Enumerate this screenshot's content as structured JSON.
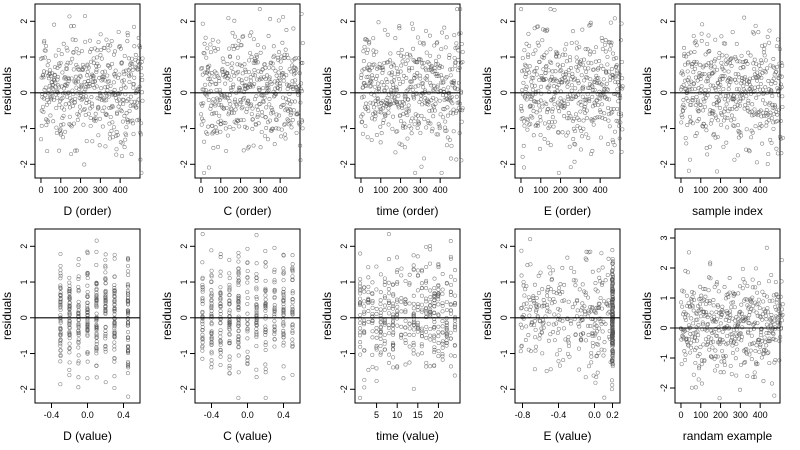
{
  "chart_data": [
    {
      "type": "scatter",
      "title": "",
      "xlabel": "D (order)",
      "ylabel": "residuals",
      "xlim": [
        -15,
        485
      ],
      "ylim": [
        -2.3,
        2.4
      ],
      "xticks": [
        0,
        100,
        200,
        300,
        400
      ],
      "xtick_labels": [
        "0",
        "100",
        "200",
        "300",
        "400"
      ],
      "yticks": [
        -2,
        -1,
        0,
        1,
        2
      ],
      "ytick_labels": [
        "-2",
        "-1",
        "0",
        "1",
        "2"
      ],
      "hline": 0,
      "n_points": 470
    },
    {
      "type": "scatter",
      "title": "",
      "xlabel": "C (order)",
      "ylabel": "residuals",
      "xlim": [
        -15,
        485
      ],
      "ylim": [
        -2.3,
        2.4
      ],
      "xticks": [
        0,
        100,
        200,
        300,
        400
      ],
      "xtick_labels": [
        "0",
        "100",
        "200",
        "300",
        "400"
      ],
      "yticks": [
        -2,
        -1,
        0,
        1,
        2
      ],
      "ytick_labels": [
        "-2",
        "-1",
        "0",
        "1",
        "2"
      ],
      "hline": 0,
      "n_points": 470
    },
    {
      "type": "scatter",
      "title": "",
      "xlabel": "time (order)",
      "ylabel": "residuals",
      "xlim": [
        -15,
        485
      ],
      "ylim": [
        -2.3,
        2.4
      ],
      "xticks": [
        0,
        100,
        200,
        300,
        400
      ],
      "xtick_labels": [
        "0",
        "100",
        "200",
        "300",
        "400"
      ],
      "yticks": [
        -2,
        -1,
        0,
        1,
        2
      ],
      "ytick_labels": [
        "-2",
        "-1",
        "0",
        "1",
        "2"
      ],
      "hline": 0,
      "n_points": 470
    },
    {
      "type": "scatter",
      "title": "",
      "xlabel": "E (order)",
      "ylabel": "residuals",
      "xlim": [
        -15,
        485
      ],
      "ylim": [
        -2.3,
        2.4
      ],
      "xticks": [
        0,
        100,
        200,
        300,
        400
      ],
      "xtick_labels": [
        "0",
        "100",
        "200",
        "300",
        "400"
      ],
      "yticks": [
        -2,
        -1,
        0,
        1,
        2
      ],
      "ytick_labels": [
        "-2",
        "-1",
        "0",
        "1",
        "2"
      ],
      "hline": 0,
      "n_points": 470
    },
    {
      "type": "scatter",
      "title": "",
      "xlabel": "sample index",
      "ylabel": "residuals",
      "xlim": [
        -15,
        485
      ],
      "ylim": [
        -2.3,
        2.4
      ],
      "xticks": [
        0,
        100,
        200,
        300,
        400
      ],
      "xtick_labels": [
        "0",
        "100",
        "200",
        "300",
        "400"
      ],
      "yticks": [
        -2,
        -1,
        0,
        1,
        2
      ],
      "ytick_labels": [
        "-2",
        "-1",
        "0",
        "1",
        "2"
      ],
      "hline": 0,
      "n_points": 470
    },
    {
      "type": "scatter",
      "title": "",
      "xlabel": "D (value)",
      "ylabel": "residuals",
      "xlim": [
        -0.55,
        0.55
      ],
      "ylim": [
        -2.3,
        2.4
      ],
      "xticks": [
        -0.4,
        0,
        0.4
      ],
      "xtick_labels": [
        "-0.4",
        "0.0",
        "0.4"
      ],
      "yticks": [
        -2,
        -1,
        0,
        1,
        2
      ],
      "ytick_labels": [
        "-2",
        "-1",
        "0",
        "1",
        "2"
      ],
      "hline": 0,
      "n_points": 400,
      "x_clusters": [
        -0.3,
        -0.2,
        -0.1,
        0,
        0.1,
        0.2,
        0.3,
        0.45
      ]
    },
    {
      "type": "scatter",
      "title": "",
      "xlabel": "C (value)",
      "ylabel": "residuals",
      "xlim": [
        -0.55,
        0.55
      ],
      "ylim": [
        -2.3,
        2.4
      ],
      "xticks": [
        -0.4,
        0,
        0.4
      ],
      "xtick_labels": [
        "-0.4",
        "0.0",
        "0.4"
      ],
      "yticks": [
        -2,
        -1,
        0,
        1,
        2
      ],
      "ytick_labels": [
        "-2",
        "-1",
        "0",
        "1",
        "2"
      ],
      "hline": 0,
      "n_points": 400,
      "x_clusters": [
        -0.5,
        -0.4,
        -0.3,
        -0.2,
        -0.1,
        0,
        0.1,
        0.2,
        0.3,
        0.4,
        0.5
      ]
    },
    {
      "type": "scatter",
      "title": "",
      "xlabel": "time (value)",
      "ylabel": "residuals",
      "xlim": [
        0.5,
        24.5
      ],
      "ylim": [
        -2.3,
        2.4
      ],
      "xticks": [
        5,
        10,
        15,
        20
      ],
      "xtick_labels": [
        "5",
        "10",
        "15",
        "20"
      ],
      "yticks": [
        -2,
        -1,
        0,
        1,
        2
      ],
      "ytick_labels": [
        "-2",
        "-1",
        "0",
        "1",
        "2"
      ],
      "hline": 0,
      "n_points": 420,
      "x_clusters": [
        1,
        2,
        3,
        4,
        5,
        6,
        7,
        8,
        9,
        10,
        11,
        12,
        13,
        14,
        15,
        16,
        17,
        18,
        19,
        20,
        21,
        22,
        23,
        24
      ]
    },
    {
      "type": "scatter",
      "title": "",
      "xlabel": "E (value)",
      "ylabel": "residuals",
      "xlim": [
        -0.85,
        0.25
      ],
      "ylim": [
        -2.3,
        2.4
      ],
      "xticks": [
        -0.8,
        -0.4,
        0,
        0.2
      ],
      "xtick_labels": [
        "-0.8",
        "-0.4",
        "0.0",
        "0.2"
      ],
      "yticks": [
        -2,
        -1,
        0,
        1,
        2
      ],
      "ytick_labels": [
        "-2",
        "-1",
        "0",
        "1",
        "2"
      ],
      "hline": 0,
      "n_points": 460,
      "dense_column_x": 0.2
    },
    {
      "type": "scatter",
      "title": "",
      "xlabel": "randam example",
      "ylabel": "residuals",
      "xlim": [
        -15,
        485
      ],
      "ylim": [
        -2.4,
        3.2
      ],
      "xticks": [
        0,
        100,
        200,
        300,
        400
      ],
      "xtick_labels": [
        "0",
        "100",
        "200",
        "300",
        "400"
      ],
      "yticks": [
        -2,
        -1,
        0,
        1,
        2,
        3
      ],
      "ytick_labels": [
        "-2",
        "-1",
        "0",
        "1",
        "2",
        "3"
      ],
      "hline": 0,
      "n_points": 470
    }
  ]
}
